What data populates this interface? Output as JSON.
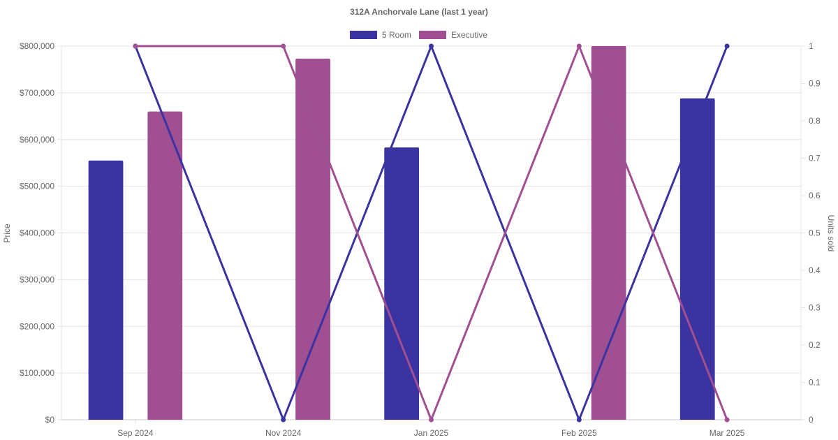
{
  "chart_data": {
    "type": "bar+line",
    "title": "312A Anchorvale Lane (last 1 year)",
    "categories": [
      "Sep 2024",
      "Nov 2024",
      "Jan 2025",
      "Feb 2025",
      "Mar 2025"
    ],
    "legend": {
      "placement": "top-center",
      "items": [
        {
          "label": "5 Room",
          "color": "#3a33a0"
        },
        {
          "label": "Executive",
          "color": "#9f4f92"
        }
      ]
    },
    "y_left": {
      "label": "Price",
      "ylim": [
        0,
        800000
      ],
      "ticks": [
        "$0",
        "$100,000",
        "$200,000",
        "$300,000",
        "$400,000",
        "$500,000",
        "$600,000",
        "$700,000",
        "$800,000"
      ]
    },
    "y_right": {
      "label": "Units sold",
      "ylim": [
        0,
        1
      ],
      "ticks": [
        "0",
        "0.1",
        "0.2",
        "0.3",
        "0.4",
        "0.5",
        "0.6",
        "0.7",
        "0.8",
        "0.9",
        "1"
      ]
    },
    "bar_series": [
      {
        "name": "5 Room",
        "color": "#3a33a0",
        "values": [
          555000,
          null,
          583000,
          null,
          688000
        ]
      },
      {
        "name": "Executive",
        "color": "#9f4f92",
        "values": [
          660000,
          773000,
          null,
          800000,
          null
        ]
      }
    ],
    "line_series": [
      {
        "name": "5 Room",
        "color": "#3a33a0",
        "axis": "right",
        "values": [
          1,
          0,
          1,
          0,
          1
        ]
      },
      {
        "name": "Executive",
        "color": "#9f4f92",
        "axis": "right",
        "values": [
          1,
          1,
          0,
          1,
          0
        ]
      }
    ],
    "grid": true
  }
}
